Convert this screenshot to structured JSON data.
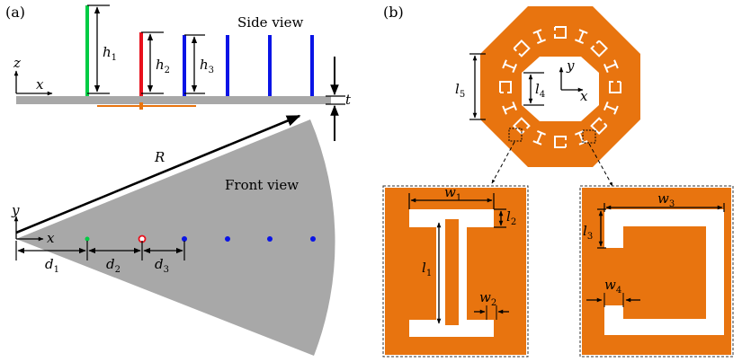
{
  "panels": {
    "a": {
      "label": "(a)",
      "side_view_title": "Side view",
      "front_view_title": "Front view",
      "axes_side": {
        "vertical": "z",
        "horizontal": "x"
      },
      "axes_front": {
        "vertical": "y",
        "horizontal": "x"
      },
      "dims": {
        "h1": "h",
        "h1_sub": "1",
        "h2": "h",
        "h2_sub": "2",
        "h3": "h",
        "h3_sub": "3",
        "t": "t",
        "R": "R",
        "d1": "d",
        "d1_sub": "1",
        "d2": "d",
        "d2_sub": "2",
        "d3": "d",
        "d3_sub": "3"
      },
      "rod_colors": [
        "#00cc44",
        "#e8101c",
        "#0a14e6",
        "#0a14e6",
        "#0a14e6",
        "#0a14e6"
      ]
    },
    "b": {
      "label": "(b)",
      "axes": {
        "vertical": "y",
        "horizontal": "x"
      },
      "dims": {
        "l5": "l",
        "l5_sub": "5",
        "l4": "l",
        "l4_sub": "4",
        "w1": "w",
        "w1_sub": "1",
        "l2": "l",
        "l2_sub": "2",
        "l1": "l",
        "l1_sub": "1",
        "w2": "w",
        "w2_sub": "2",
        "w3": "w",
        "w3_sub": "3",
        "l3": "l",
        "l3_sub": "3",
        "w4": "w",
        "w4_sub": "4"
      },
      "metal_color": "#e8740f"
    }
  },
  "colors": {
    "plate": "#a8a8a8",
    "sector": "#a8a8a8",
    "orange": "#e8740f",
    "black": "#000000"
  }
}
